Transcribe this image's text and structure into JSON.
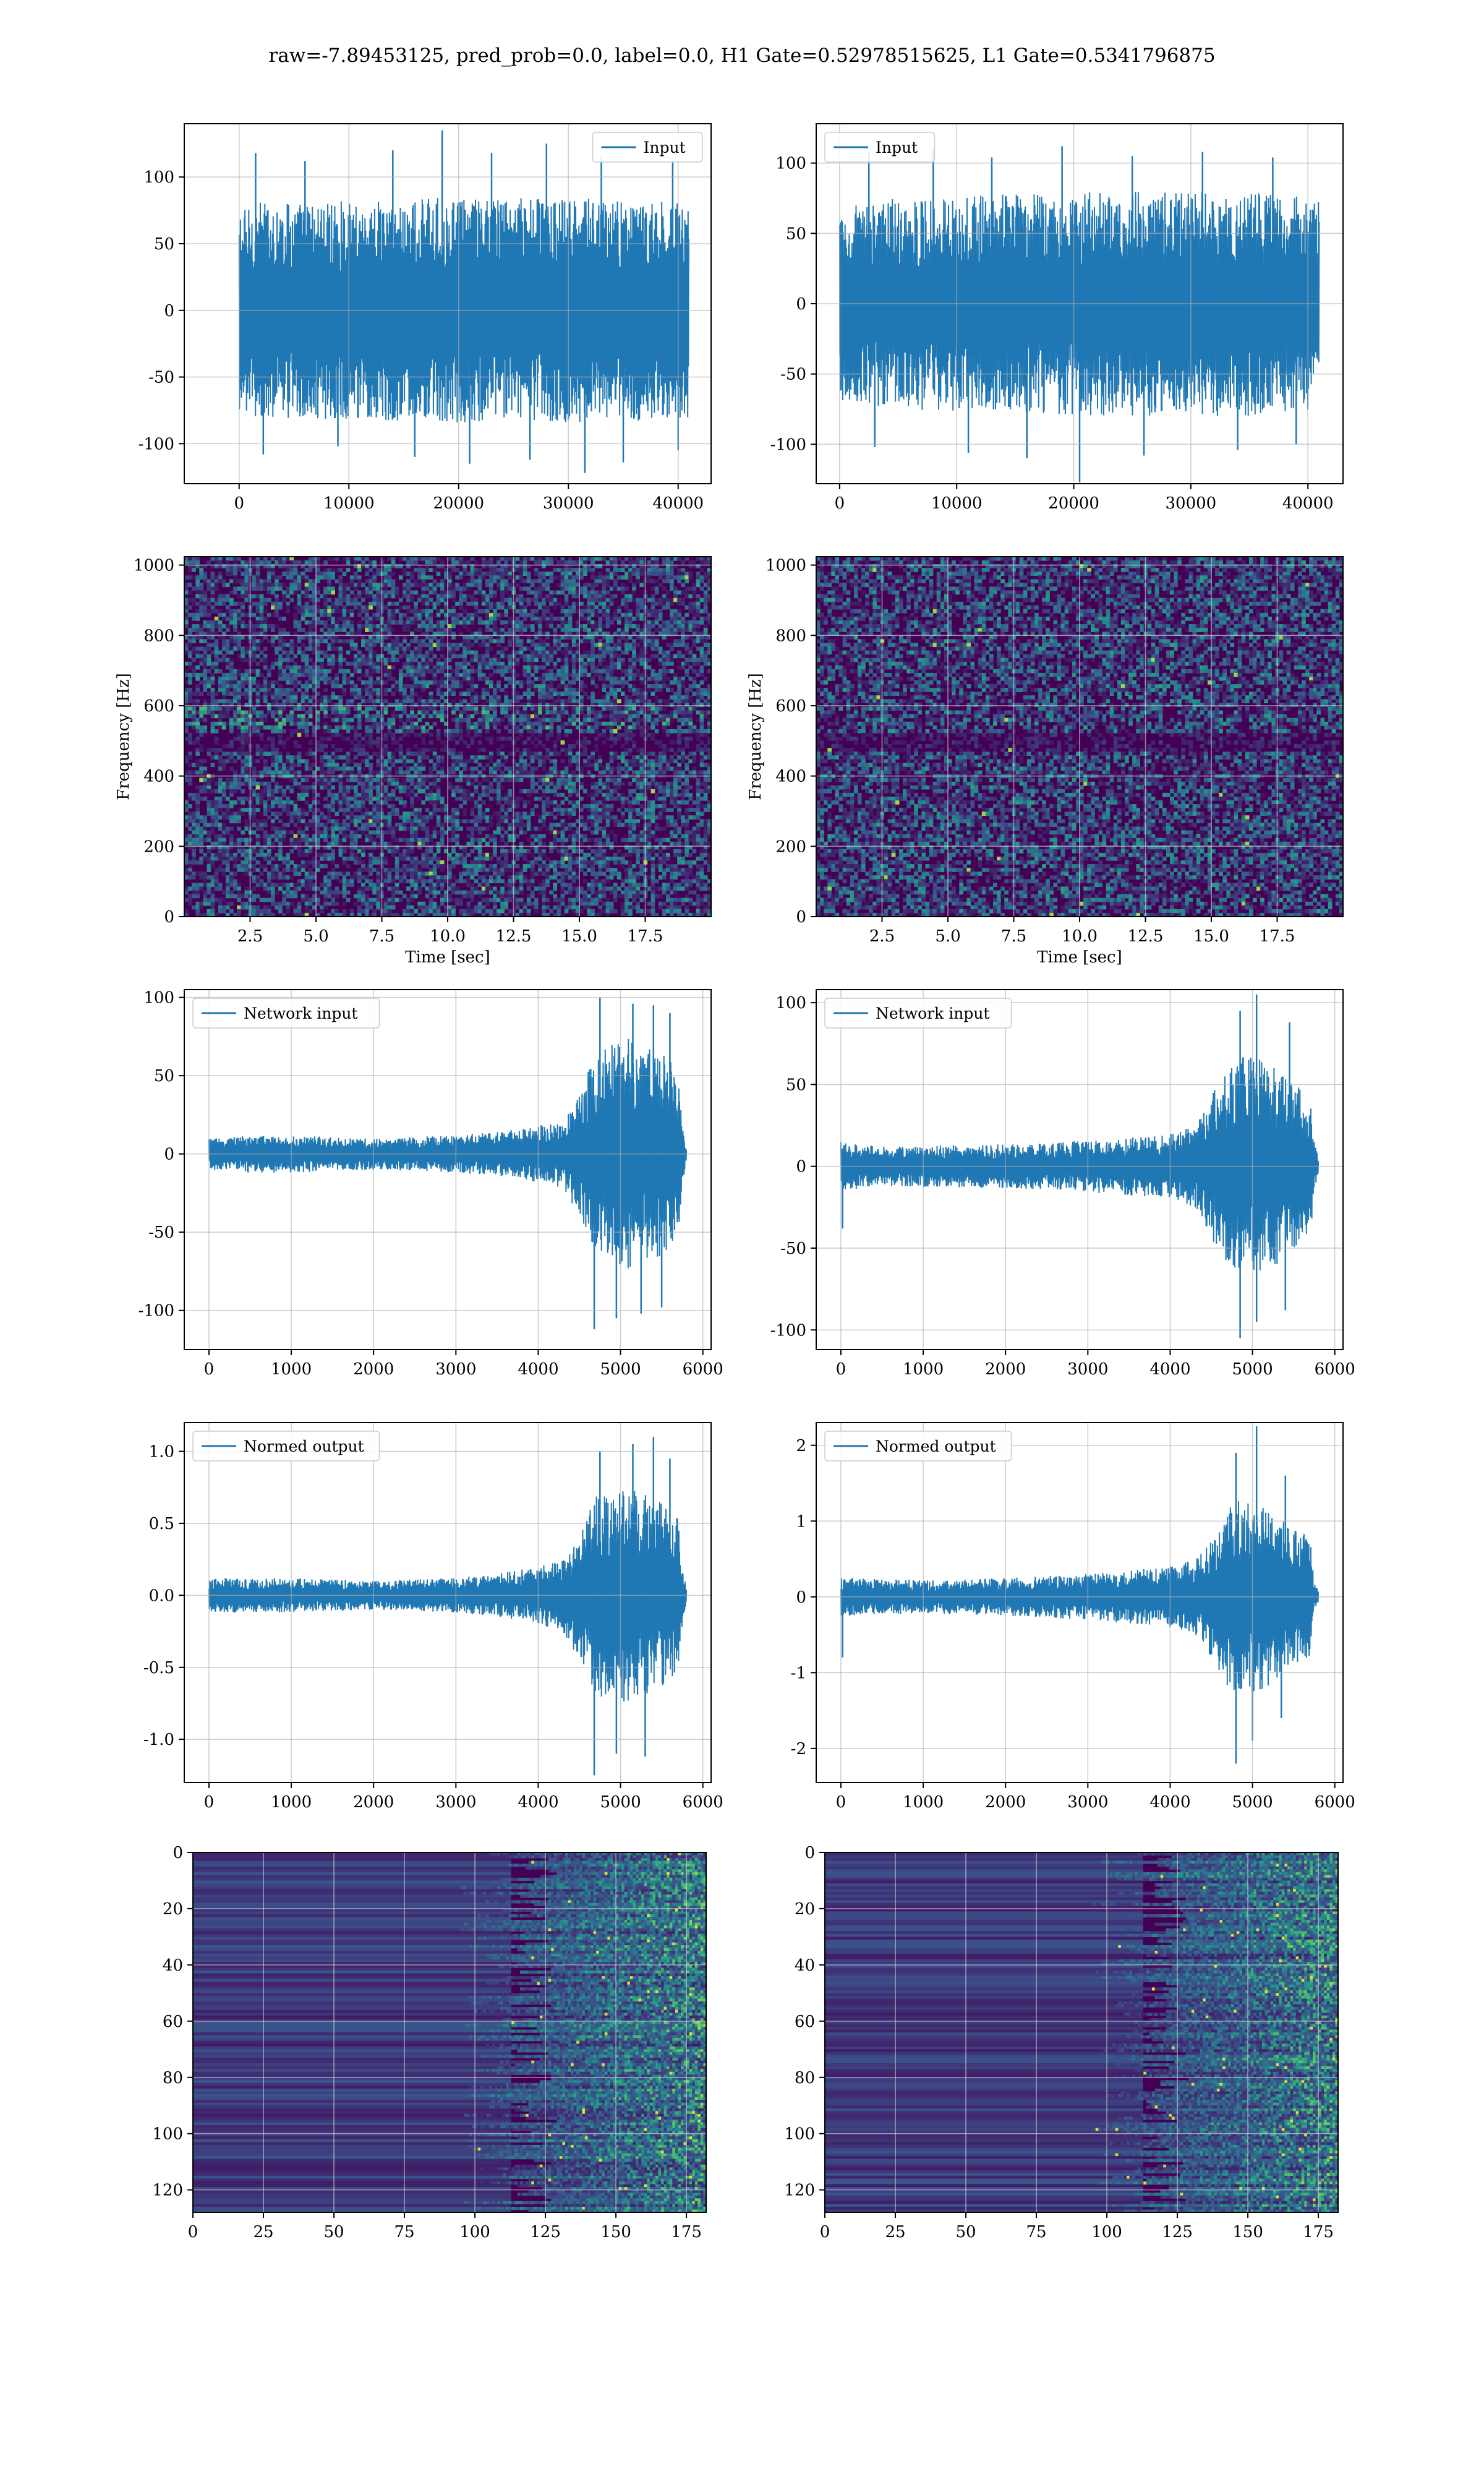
{
  "title": "raw=-7.89453125, pred_prob=0.0, label=0.0, H1 Gate=0.52978515625, L1 Gate=0.5341796875",
  "colors": {
    "series": "#1f77b4",
    "grid": "#b0b0b0",
    "axis": "#000000",
    "viridis_dark": "#440154",
    "viridis_mid": "#21918c",
    "viridis_bright": "#fde725"
  },
  "chart_data": [
    {
      "id": "h1-input",
      "type": "line",
      "legend": "Input",
      "legend_position": "top-right",
      "xlim": [
        -5000,
        43000
      ],
      "ylim": [
        -130,
        140
      ],
      "xticks": [
        0,
        10000,
        20000,
        30000,
        40000
      ],
      "yticks": [
        -100,
        -50,
        0,
        50,
        100
      ],
      "series": {
        "x_range": [
          0,
          40960
        ],
        "envelope": [
          [
            0,
            75
          ],
          [
            2000,
            82
          ],
          [
            10000,
            82
          ],
          [
            20000,
            85
          ],
          [
            30000,
            84
          ],
          [
            40960,
            82
          ]
        ],
        "spikes": [
          [
            1500,
            118
          ],
          [
            6000,
            112
          ],
          [
            14000,
            120
          ],
          [
            18500,
            135
          ],
          [
            23000,
            118
          ],
          [
            28000,
            125
          ],
          [
            33000,
            115
          ],
          [
            39500,
            112
          ],
          [
            2200,
            -108
          ],
          [
            9000,
            -102
          ],
          [
            16000,
            -110
          ],
          [
            21000,
            -115
          ],
          [
            26500,
            -112
          ],
          [
            31500,
            -122
          ],
          [
            35000,
            -114
          ],
          [
            40000,
            -105
          ]
        ]
      }
    },
    {
      "id": "l1-input",
      "type": "line",
      "legend": "Input",
      "legend_position": "top-left",
      "xlim": [
        -2000,
        43000
      ],
      "ylim": [
        -128,
        128
      ],
      "xticks": [
        0,
        10000,
        20000,
        30000,
        40000
      ],
      "yticks": [
        -100,
        -50,
        0,
        50,
        100
      ],
      "series": {
        "x_range": [
          0,
          40960
        ],
        "envelope": [
          [
            0,
            70
          ],
          [
            5000,
            75
          ],
          [
            15000,
            78
          ],
          [
            25000,
            80
          ],
          [
            35000,
            80
          ],
          [
            40960,
            75
          ]
        ],
        "spikes": [
          [
            2500,
            108
          ],
          [
            8000,
            110
          ],
          [
            13000,
            104
          ],
          [
            19000,
            112
          ],
          [
            25000,
            105
          ],
          [
            31000,
            108
          ],
          [
            37000,
            104
          ],
          [
            3000,
            -102
          ],
          [
            11000,
            -106
          ],
          [
            16000,
            -110
          ],
          [
            20500,
            -127
          ],
          [
            26000,
            -108
          ],
          [
            34000,
            -104
          ],
          [
            39000,
            -100
          ]
        ]
      }
    },
    {
      "id": "h1-spectrogram",
      "type": "heatmap",
      "xlabel": "Time [sec]",
      "ylabel": "Frequency [Hz]",
      "xlim": [
        0,
        20
      ],
      "ylim": [
        0,
        1024
      ],
      "xticks": [
        2.5,
        5.0,
        7.5,
        10.0,
        12.5,
        15.0,
        17.5
      ],
      "yticks": [
        0,
        200,
        400,
        600,
        800,
        1000
      ]
    },
    {
      "id": "l1-spectrogram",
      "type": "heatmap",
      "xlabel": "Time [sec]",
      "ylabel": "Frequency [Hz]",
      "xlim": [
        0,
        20
      ],
      "ylim": [
        0,
        1024
      ],
      "xticks": [
        2.5,
        5.0,
        7.5,
        10.0,
        12.5,
        15.0,
        17.5
      ],
      "yticks": [
        0,
        200,
        400,
        600,
        800,
        1000
      ]
    },
    {
      "id": "h1-network-input",
      "type": "line",
      "legend": "Network input",
      "legend_position": "top-left",
      "xlim": [
        -300,
        6100
      ],
      "ylim": [
        -125,
        105
      ],
      "xticks": [
        0,
        1000,
        2000,
        3000,
        4000,
        5000,
        6000
      ],
      "yticks": [
        -100,
        -50,
        0,
        50,
        100
      ],
      "series": {
        "x_range": [
          0,
          5800
        ],
        "envelope": [
          [
            0,
            10
          ],
          [
            500,
            12
          ],
          [
            1000,
            12
          ],
          [
            2000,
            10
          ],
          [
            3000,
            12
          ],
          [
            3500,
            14
          ],
          [
            4000,
            18
          ],
          [
            4300,
            22
          ],
          [
            4500,
            40
          ],
          [
            4700,
            65
          ],
          [
            4900,
            70
          ],
          [
            5100,
            75
          ],
          [
            5300,
            68
          ],
          [
            5500,
            65
          ],
          [
            5700,
            55
          ],
          [
            5750,
            20
          ],
          [
            5800,
            5
          ]
        ],
        "spikes": [
          [
            4750,
            100
          ],
          [
            5150,
            96
          ],
          [
            5400,
            95
          ],
          [
            5600,
            90
          ],
          [
            4680,
            -112
          ],
          [
            4950,
            -105
          ],
          [
            5250,
            -102
          ],
          [
            5500,
            -98
          ]
        ]
      }
    },
    {
      "id": "l1-network-input",
      "type": "line",
      "legend": "Network input",
      "legend_position": "top-left",
      "xlim": [
        -300,
        6100
      ],
      "ylim": [
        -112,
        108
      ],
      "xticks": [
        0,
        1000,
        2000,
        3000,
        4000,
        5000,
        6000
      ],
      "yticks": [
        -100,
        -50,
        0,
        50,
        100
      ],
      "series": {
        "x_range": [
          0,
          5800
        ],
        "envelope": [
          [
            0,
            15
          ],
          [
            500,
            12
          ],
          [
            1500,
            13
          ],
          [
            2500,
            14
          ],
          [
            3000,
            16
          ],
          [
            3500,
            18
          ],
          [
            4000,
            20
          ],
          [
            4300,
            25
          ],
          [
            4500,
            45
          ],
          [
            4700,
            60
          ],
          [
            4900,
            68
          ],
          [
            5100,
            65
          ],
          [
            5300,
            60
          ],
          [
            5500,
            50
          ],
          [
            5700,
            45
          ],
          [
            5750,
            15
          ],
          [
            5800,
            5
          ]
        ],
        "spikes": [
          [
            4850,
            95
          ],
          [
            5050,
            105
          ],
          [
            5450,
            88
          ],
          [
            20,
            -38
          ],
          [
            4850,
            -105
          ],
          [
            5050,
            -95
          ],
          [
            5400,
            -88
          ]
        ]
      }
    },
    {
      "id": "h1-normed-output",
      "type": "line",
      "legend": "Normed output",
      "legend_position": "top-left",
      "xlim": [
        -300,
        6100
      ],
      "ylim": [
        -1.3,
        1.2
      ],
      "xticks": [
        0,
        1000,
        2000,
        3000,
        4000,
        5000,
        6000
      ],
      "yticks": [
        -1.0,
        -0.5,
        0.0,
        0.5,
        1.0
      ],
      "series": {
        "x_range": [
          0,
          5800
        ],
        "envelope": [
          [
            0,
            0.12
          ],
          [
            1000,
            0.12
          ],
          [
            2000,
            0.1
          ],
          [
            3000,
            0.12
          ],
          [
            3500,
            0.15
          ],
          [
            4000,
            0.2
          ],
          [
            4300,
            0.25
          ],
          [
            4500,
            0.45
          ],
          [
            4700,
            0.7
          ],
          [
            4900,
            0.72
          ],
          [
            5100,
            0.75
          ],
          [
            5300,
            0.7
          ],
          [
            5500,
            0.65
          ],
          [
            5700,
            0.55
          ],
          [
            5750,
            0.2
          ],
          [
            5800,
            0.05
          ]
        ],
        "spikes": [
          [
            4750,
            1.0
          ],
          [
            5150,
            1.05
          ],
          [
            5400,
            1.1
          ],
          [
            5600,
            0.95
          ],
          [
            4680,
            -1.25
          ],
          [
            4950,
            -1.1
          ],
          [
            5300,
            -1.12
          ]
        ]
      }
    },
    {
      "id": "l1-normed-output",
      "type": "line",
      "legend": "Normed output",
      "legend_position": "top-left",
      "xlim": [
        -300,
        6100
      ],
      "ylim": [
        -2.45,
        2.3
      ],
      "xticks": [
        0,
        1000,
        2000,
        3000,
        4000,
        5000,
        6000
      ],
      "yticks": [
        -2,
        -1,
        0,
        1,
        2
      ],
      "series": {
        "x_range": [
          0,
          5800
        ],
        "envelope": [
          [
            0,
            0.25
          ],
          [
            1000,
            0.22
          ],
          [
            2000,
            0.25
          ],
          [
            3000,
            0.3
          ],
          [
            3500,
            0.35
          ],
          [
            4000,
            0.4
          ],
          [
            4300,
            0.5
          ],
          [
            4500,
            0.8
          ],
          [
            4700,
            1.2
          ],
          [
            4900,
            1.3
          ],
          [
            5100,
            1.25
          ],
          [
            5300,
            1.1
          ],
          [
            5500,
            0.9
          ],
          [
            5700,
            0.8
          ],
          [
            5750,
            0.2
          ],
          [
            5800,
            0.08
          ]
        ],
        "spikes": [
          [
            4800,
            1.9
          ],
          [
            5050,
            2.25
          ],
          [
            5400,
            1.6
          ],
          [
            20,
            -0.8
          ],
          [
            4800,
            -2.2
          ],
          [
            5000,
            -1.9
          ],
          [
            5350,
            -1.6
          ]
        ]
      }
    },
    {
      "id": "h1-feature-map",
      "type": "heatmap",
      "xlim": [
        0,
        182
      ],
      "ylim": [
        128,
        0
      ],
      "xticks": [
        0,
        25,
        50,
        75,
        100,
        125,
        150,
        175
      ],
      "yticks": [
        0,
        20,
        40,
        60,
        80,
        100,
        120
      ]
    },
    {
      "id": "l1-feature-map",
      "type": "heatmap",
      "xlim": [
        0,
        182
      ],
      "ylim": [
        128,
        0
      ],
      "xticks": [
        0,
        25,
        50,
        75,
        100,
        125,
        150,
        175
      ],
      "yticks": [
        0,
        20,
        40,
        60,
        80,
        100,
        120
      ]
    }
  ]
}
